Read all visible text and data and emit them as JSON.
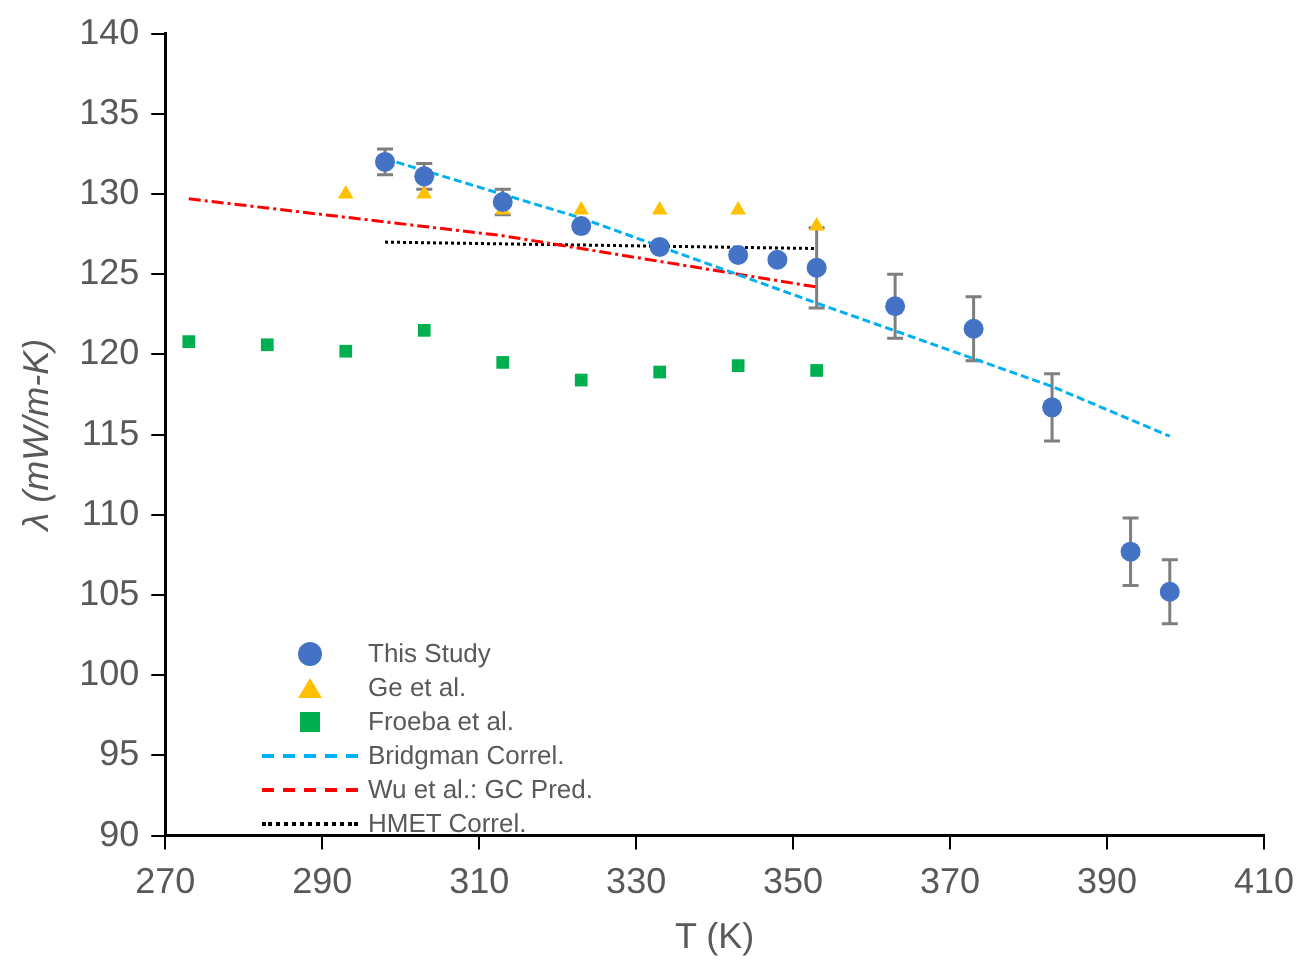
{
  "chart_data": {
    "type": "scatter",
    "xlabel": "T (K)",
    "ylabel": "λ (mW/m-K)",
    "xlim": [
      270,
      410
    ],
    "xticks": [
      270,
      290,
      310,
      330,
      350,
      370,
      390,
      410
    ],
    "ylim": [
      90,
      140
    ],
    "yticks": [
      90,
      95,
      100,
      105,
      110,
      115,
      120,
      125,
      130,
      135,
      140
    ],
    "grid": false,
    "legend": "bottom left",
    "series": [
      {
        "name": "This Study",
        "marker": "circle",
        "color": "#4472c4",
        "x": [
          298,
          303,
          313,
          323,
          333,
          343,
          348,
          353,
          363,
          373,
          383,
          393,
          398
        ],
        "values": [
          132.0,
          131.1,
          129.5,
          128.0,
          126.7,
          126.2,
          125.9,
          125.4,
          123.0,
          121.6,
          116.7,
          107.7,
          105.2
        ],
        "errors": [
          0.8,
          0.8,
          0.8,
          null,
          null,
          null,
          null,
          2.5,
          2.0,
          2.0,
          2.1,
          2.1,
          2.0
        ]
      },
      {
        "name": "Ge et al.",
        "marker": "triangle",
        "color": "#ffc000",
        "x": [
          293,
          303,
          313,
          323,
          333,
          343,
          353
        ],
        "values": [
          130,
          130,
          129,
          129,
          129,
          129,
          128
        ]
      },
      {
        "name": "Froeba et al.",
        "marker": "square",
        "color": "#00b050",
        "x": [
          273,
          283,
          293,
          303,
          313,
          323,
          333,
          343,
          353
        ],
        "values": [
          120.8,
          120.6,
          120.2,
          121.5,
          119.5,
          118.4,
          118.9,
          119.3,
          119.0
        ]
      },
      {
        "name": "Bridgman Correl.",
        "type": "line",
        "marker": "none",
        "line_style": "dashed",
        "color": "#00b0f0",
        "x": [
          298,
          323,
          353,
          383,
          398
        ],
        "values": [
          132.2,
          128.5,
          123.2,
          118.0,
          114.9
        ]
      },
      {
        "name": "Wu et al.: GC Pred.",
        "type": "line",
        "marker": "none",
        "line_style": "dashdot",
        "color": "#ff0000",
        "x": [
          273,
          313,
          353
        ],
        "values": [
          129.7,
          127.4,
          124.2
        ]
      },
      {
        "name": "HMET Correl.",
        "type": "line",
        "marker": "none",
        "line_style": "dotted",
        "color": "#000000",
        "x": [
          298,
          353
        ],
        "values": [
          127.0,
          126.6
        ]
      }
    ]
  }
}
